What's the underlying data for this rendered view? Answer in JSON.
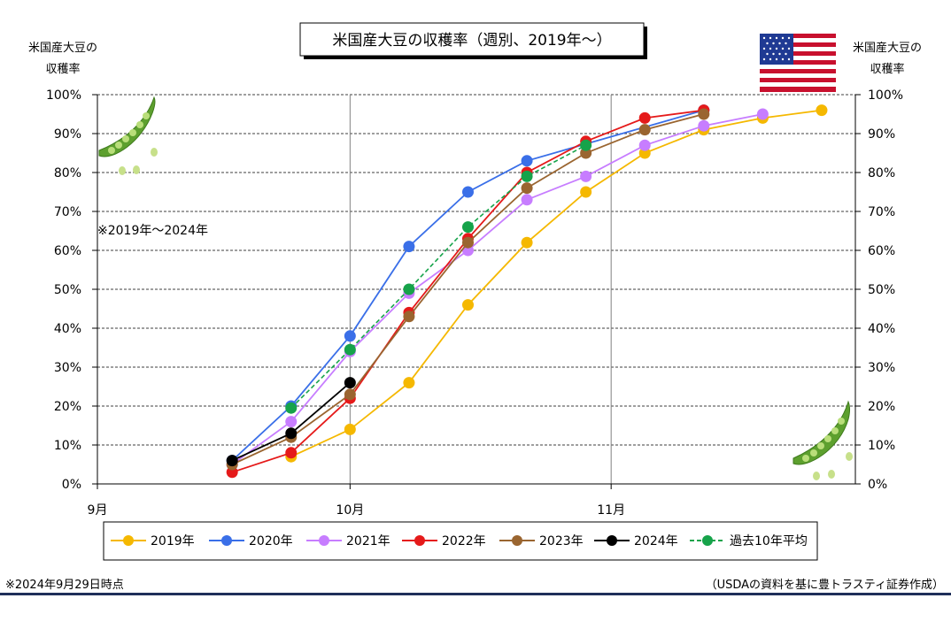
{
  "chart_data": {
    "type": "line",
    "title": "米国産大豆の収穫率（週別、2019年～）",
    "left_axis_label_line1": "米国産大豆の",
    "left_axis_label_line2": "収穫率",
    "right_axis_label_line1": "米国産大豆の",
    "right_axis_label_line2": "収穫率",
    "note": "※2019年～2024年",
    "x_axis": {
      "type": "date",
      "range": [
        "09-01",
        "11-30"
      ],
      "tick_labels": [
        "9月",
        "10月",
        "11月"
      ],
      "tick_dates": [
        "09-01",
        "10-01",
        "11-01"
      ]
    },
    "y_axis": {
      "range": [
        0,
        100
      ],
      "unit": "%",
      "step": 10,
      "tick_labels": [
        "0%",
        "10%",
        "20%",
        "30%",
        "40%",
        "50%",
        "60%",
        "70%",
        "80%",
        "90%",
        "100%"
      ]
    },
    "series": [
      {
        "name": "2019年",
        "color": "#F5B800",
        "dash": false,
        "x": [
          "09-17",
          "09-24",
          "10-01",
          "10-08",
          "10-15",
          "10-22",
          "10-29",
          "11-05",
          "11-12",
          "11-19",
          "11-26"
        ],
        "values": [
          null,
          7,
          14,
          26,
          46,
          62,
          75,
          85,
          91,
          94,
          96
        ]
      },
      {
        "name": "2020年",
        "color": "#3A6FE8",
        "dash": false,
        "x": [
          "09-17",
          "09-24",
          "10-01",
          "10-08",
          "10-15",
          "10-22",
          "10-29",
          "11-05",
          "11-12",
          "11-19",
          "11-26"
        ],
        "values": [
          6,
          20,
          38,
          61,
          75,
          83,
          null,
          null,
          96,
          null,
          null
        ]
      },
      {
        "name": "2021年",
        "color": "#C77DFF",
        "dash": false,
        "x": [
          "09-17",
          "09-24",
          "10-01",
          "10-08",
          "10-15",
          "10-22",
          "10-29",
          "11-05",
          "11-12",
          "11-19",
          "11-26"
        ],
        "values": [
          5,
          16,
          34,
          49,
          60,
          73,
          79,
          87,
          92,
          95,
          null
        ]
      },
      {
        "name": "2022年",
        "color": "#E51A1A",
        "dash": false,
        "x": [
          "09-17",
          "09-24",
          "10-01",
          "10-08",
          "10-15",
          "10-22",
          "10-29",
          "11-05",
          "11-12",
          "11-19",
          "11-26"
        ],
        "values": [
          3,
          8,
          22,
          44,
          63,
          80,
          88,
          94,
          96,
          null,
          null
        ]
      },
      {
        "name": "2023年",
        "color": "#9A6530",
        "dash": false,
        "x": [
          "09-17",
          "09-24",
          "10-01",
          "10-08",
          "10-15",
          "10-22",
          "10-29",
          "11-05",
          "11-12",
          "11-19",
          "11-26"
        ],
        "values": [
          5,
          12,
          23,
          43,
          62,
          76,
          85,
          91,
          95,
          null,
          null
        ]
      },
      {
        "name": "2024年",
        "color": "#000000",
        "dash": false,
        "x": [
          "09-17",
          "09-24",
          "10-01",
          "10-08",
          "10-15",
          "10-22",
          "10-29",
          "11-05",
          "11-12",
          "11-19",
          "11-26"
        ],
        "values": [
          6,
          13,
          26,
          null,
          null,
          null,
          null,
          null,
          null,
          null,
          null
        ]
      },
      {
        "name": "過去10年平均",
        "color": "#16A34A",
        "dash": true,
        "x": [
          "09-17",
          "09-24",
          "10-01",
          "10-08",
          "10-15",
          "10-22",
          "10-29",
          "11-05",
          "11-12",
          "11-19",
          "11-26"
        ],
        "values": [
          null,
          19.5,
          34.5,
          50,
          66,
          79,
          87,
          null,
          null,
          null,
          null
        ]
      }
    ],
    "grid": true,
    "legend_position": "bottom"
  },
  "footer": {
    "left_note": "※2024年9月29日時点",
    "source": "（USDAの資料を基に豊トラスティ証券作成）"
  },
  "decor": {
    "flag": "us-flag-icon",
    "pea_pod": "pea-pod-icon"
  }
}
